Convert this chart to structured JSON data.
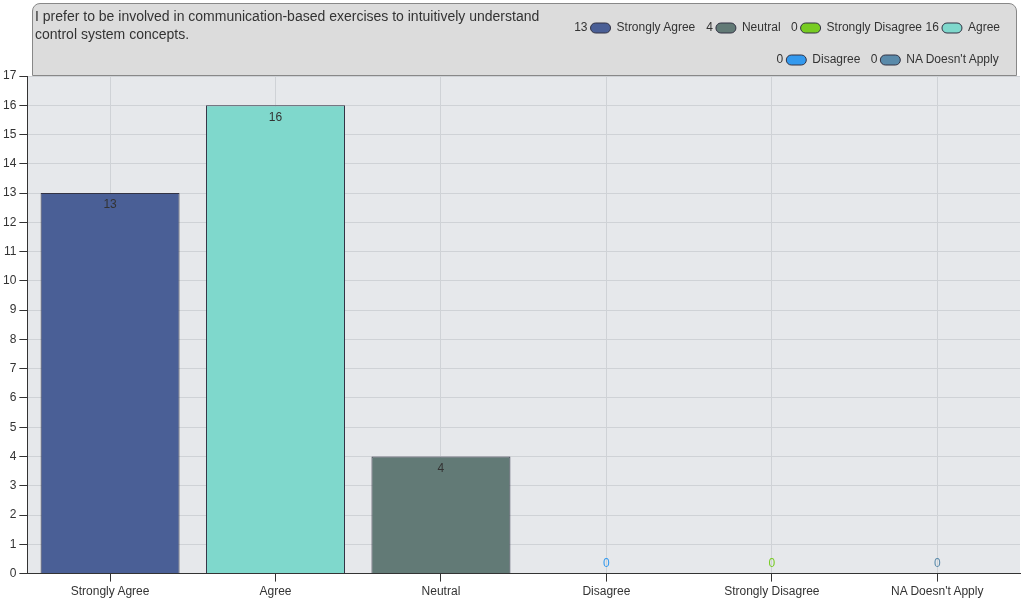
{
  "chart_data": {
    "type": "bar",
    "title": "I prefer to be involved in communication-based exercises to intuitively understand control system concepts.",
    "categories": [
      "Strongly Agree",
      "Agree",
      "Neutral",
      "Disagree",
      "Strongly Disagree",
      "NA Doesn't Apply"
    ],
    "series": [
      {
        "name": "Strongly Agree",
        "color": "#4a5f96",
        "values": [
          13,
          null,
          null,
          null,
          null,
          null
        ]
      },
      {
        "name": "Agree",
        "color": "#7fd8cc",
        "values": [
          null,
          16,
          null,
          null,
          null,
          null
        ]
      },
      {
        "name": "Neutral",
        "color": "#627a76",
        "values": [
          null,
          null,
          4,
          null,
          null,
          null
        ]
      },
      {
        "name": "Disagree",
        "color": "#3399ee",
        "values": [
          null,
          null,
          null,
          0,
          null,
          null
        ]
      },
      {
        "name": "Strongly Disagree",
        "color": "#77cc22",
        "values": [
          null,
          null,
          null,
          null,
          0,
          null
        ]
      },
      {
        "name": "NA Doesn't Apply",
        "color": "#5a8aaa",
        "values": [
          null,
          null,
          null,
          null,
          null,
          0
        ]
      }
    ],
    "annotations": [
      "13",
      "16",
      "4",
      "0",
      "0",
      "0"
    ],
    "ylim": [
      0,
      17
    ],
    "yticks": [
      0,
      1,
      2,
      3,
      4,
      5,
      6,
      7,
      8,
      9,
      10,
      11,
      12,
      13,
      14,
      15,
      16,
      17
    ],
    "grid": true,
    "legend": "top right",
    "data_labels": true
  }
}
